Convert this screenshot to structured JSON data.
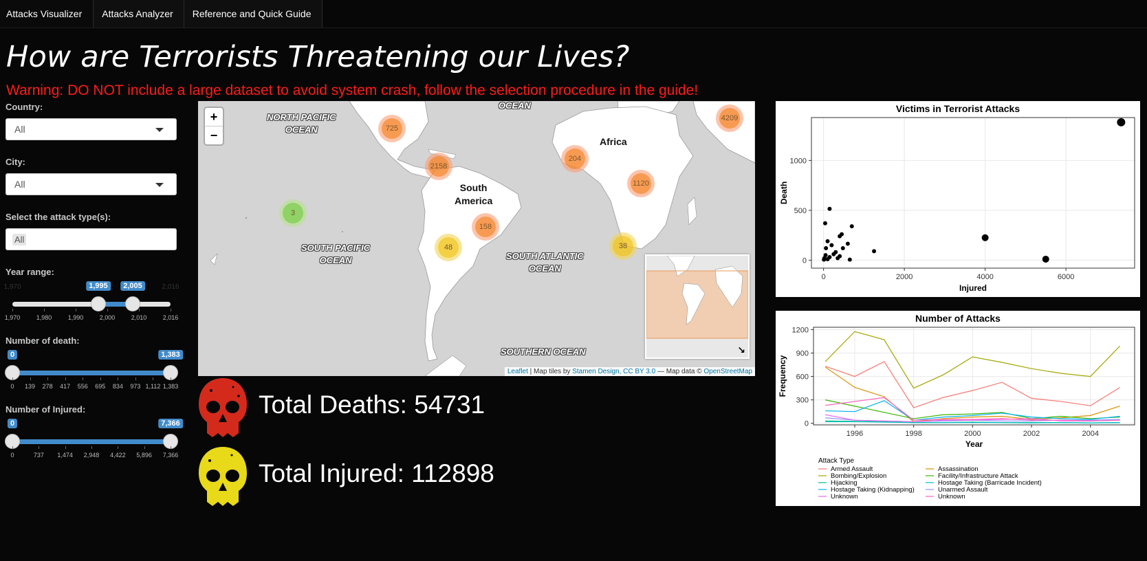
{
  "nav": {
    "tabs": [
      "Attacks Visualizer",
      "Attacks Analyzer",
      "Reference and Quick Guide"
    ]
  },
  "header": {
    "title": "How are Terrorists Threatening our Lives?",
    "warning": "Warning: DO NOT include a large dataset to avoid system crash, follow the selection procedure in the guide!"
  },
  "sidebar": {
    "country": {
      "label": "Country:",
      "value": "All"
    },
    "city": {
      "label": "City:",
      "value": "All"
    },
    "attack_type": {
      "label": "Select the attack type(s):",
      "value": "All"
    },
    "year": {
      "label": "Year range:",
      "min": 1970,
      "max": 2016,
      "from": 1995,
      "to": 2005,
      "min_label": "1,970",
      "max_label": "2,016",
      "from_label": "1,995",
      "to_label": "2,005",
      "ticks": [
        "1,970",
        "1,980",
        "1,990",
        "2,000",
        "2,010",
        "2,016"
      ]
    },
    "death": {
      "label": "Number of death:",
      "min": 0,
      "max": 1383,
      "from": 0,
      "to": 1383,
      "from_label": "0",
      "to_label": "1,383",
      "ticks": [
        "0",
        "139",
        "278",
        "417",
        "556",
        "695",
        "834",
        "973",
        "1,112",
        "1,383"
      ]
    },
    "injured": {
      "label": "Number of Injured:",
      "min": 0,
      "max": 7366,
      "from": 0,
      "to": 7366,
      "from_label": "0",
      "to_label": "7,366",
      "ticks": [
        "0",
        "737",
        "1,474",
        "2,948",
        "4,422",
        "5,896",
        "7,366"
      ]
    }
  },
  "map": {
    "zoom_in": "+",
    "zoom_out": "−",
    "oceans": {
      "north_pacific": [
        "NORTH PACIFIC",
        "OCEAN"
      ],
      "top": "OCEAN",
      "south_pacific": [
        "SOUTH PACIFIC",
        "OCEAN"
      ],
      "south_atlantic": [
        "SOUTH ATLANTIC",
        "OCEAN"
      ],
      "southern": "SOUTHERN OCEAN"
    },
    "continents": {
      "africa": "Africa",
      "south_america": [
        "South",
        "America"
      ]
    },
    "clusters": [
      {
        "count": "725",
        "color": "orange"
      },
      {
        "count": "2158",
        "color": "orange"
      },
      {
        "count": "204",
        "color": "orange"
      },
      {
        "count": "1120",
        "color": "orange"
      },
      {
        "count": "4209",
        "color": "orange"
      },
      {
        "count": "158",
        "color": "orange"
      },
      {
        "count": "48",
        "color": "yellow"
      },
      {
        "count": "38",
        "color": "yellow"
      },
      {
        "count": "3",
        "color": "green"
      }
    ],
    "attribution": {
      "leaflet": "Leaflet",
      "tiles": " | Map tiles by ",
      "stamen": "Stamen Design, CC BY 3.0",
      "data": " — Map data © ",
      "osm": "OpenStreetMap"
    }
  },
  "totals": {
    "deaths": "Total Deaths: 54731",
    "injured": "Total Injured: 112898"
  },
  "colors": {
    "warning": "#ff1a1a",
    "slider": "#428bca",
    "skull_red": "#d42a1c",
    "skull_yellow": "#e8d919"
  },
  "chart_data": [
    {
      "type": "scatter",
      "title": "Victims in Terrorist Attacks",
      "xlabel": "Injured",
      "ylabel": "Death",
      "xlim": [
        -300,
        7700
      ],
      "ylim": [
        -80,
        1430
      ],
      "xticks": [
        0,
        2000,
        4000,
        6000
      ],
      "yticks": [
        0,
        500,
        1000
      ],
      "grid": true,
      "points": [
        {
          "x": 7366,
          "y": 1383,
          "size": 6
        },
        {
          "x": 4000,
          "y": 225,
          "size": 5
        },
        {
          "x": 5500,
          "y": 10,
          "size": 5
        },
        {
          "x": 1250,
          "y": 90,
          "size": 3
        },
        {
          "x": 700,
          "y": 340,
          "size": 3
        },
        {
          "x": 150,
          "y": 515,
          "size": 3
        },
        {
          "x": 40,
          "y": 370,
          "size": 3
        },
        {
          "x": 450,
          "y": 260,
          "size": 3
        },
        {
          "x": 400,
          "y": 240,
          "size": 3
        },
        {
          "x": 600,
          "y": 165,
          "size": 3
        },
        {
          "x": 480,
          "y": 120,
          "size": 3
        },
        {
          "x": 650,
          "y": 5,
          "size": 3
        },
        {
          "x": 100,
          "y": 190,
          "size": 3
        },
        {
          "x": 200,
          "y": 150,
          "size": 3
        },
        {
          "x": 60,
          "y": 120,
          "size": 3
        },
        {
          "x": 300,
          "y": 80,
          "size": 3
        },
        {
          "x": 50,
          "y": 50,
          "size": 3
        },
        {
          "x": 150,
          "y": 30,
          "size": 3
        },
        {
          "x": 250,
          "y": 60,
          "size": 3
        },
        {
          "x": 20,
          "y": 20,
          "size": 3
        },
        {
          "x": 100,
          "y": 10,
          "size": 3
        },
        {
          "x": 350,
          "y": 20,
          "size": 3
        },
        {
          "x": 10,
          "y": 5,
          "size": 3
        },
        {
          "x": 400,
          "y": 40,
          "size": 3
        }
      ]
    },
    {
      "type": "line",
      "title": "Number of Attacks",
      "xlabel": "Year",
      "ylabel": "Frequency",
      "x": [
        1995,
        1996,
        1997,
        1998,
        1999,
        2000,
        2001,
        2002,
        2003,
        2004,
        2005
      ],
      "xticks": [
        1996,
        1998,
        2000,
        2002,
        2004
      ],
      "yticks": [
        0,
        300,
        600,
        900,
        1200
      ],
      "xlim": [
        1994.6,
        2005.5
      ],
      "ylim": [
        -20,
        1230
      ],
      "legend_title": "Attack Type",
      "legend_position": "bottom",
      "series": [
        {
          "name": "Armed Assault",
          "color": "#F8766D",
          "values": [
            730,
            600,
            790,
            200,
            330,
            420,
            525,
            320,
            280,
            225,
            460
          ]
        },
        {
          "name": "Assassination",
          "color": "#D89000",
          "values": [
            720,
            460,
            340,
            20,
            60,
            80,
            90,
            50,
            70,
            100,
            220
          ]
        },
        {
          "name": "Bombing/Explosion",
          "color": "#A3A500",
          "values": [
            790,
            1175,
            1070,
            450,
            620,
            850,
            780,
            700,
            640,
            600,
            990
          ]
        },
        {
          "name": "Facility/Infrastructure Attack",
          "color": "#39B600",
          "values": [
            300,
            220,
            140,
            60,
            110,
            120,
            140,
            60,
            90,
            60,
            80
          ]
        },
        {
          "name": "Hijacking",
          "color": "#00BF7D",
          "values": [
            30,
            25,
            20,
            10,
            10,
            15,
            10,
            10,
            10,
            5,
            10
          ]
        },
        {
          "name": "Hostage Taking (Barricade Incident)",
          "color": "#00BFC4",
          "values": [
            20,
            20,
            15,
            10,
            10,
            10,
            10,
            5,
            10,
            5,
            10
          ]
        },
        {
          "name": "Hostage Taking (Kidnapping)",
          "color": "#00B0F6",
          "values": [
            160,
            150,
            290,
            40,
            80,
            100,
            130,
            80,
            60,
            50,
            90
          ]
        },
        {
          "name": "Unarmed Assault",
          "color": "#9590FF",
          "values": [
            70,
            40,
            30,
            20,
            30,
            40,
            30,
            30,
            40,
            40,
            50
          ]
        },
        {
          "name": "Unknown",
          "color": "#E76BF3",
          "values": [
            110,
            40,
            30,
            20,
            40,
            40,
            50,
            60,
            30,
            30,
            40
          ]
        },
        {
          "name": "Unknown",
          "color": "#FF62BC",
          "values": [
            230,
            280,
            330,
            40,
            50,
            50,
            60,
            40,
            40,
            30,
            40
          ]
        }
      ]
    }
  ]
}
